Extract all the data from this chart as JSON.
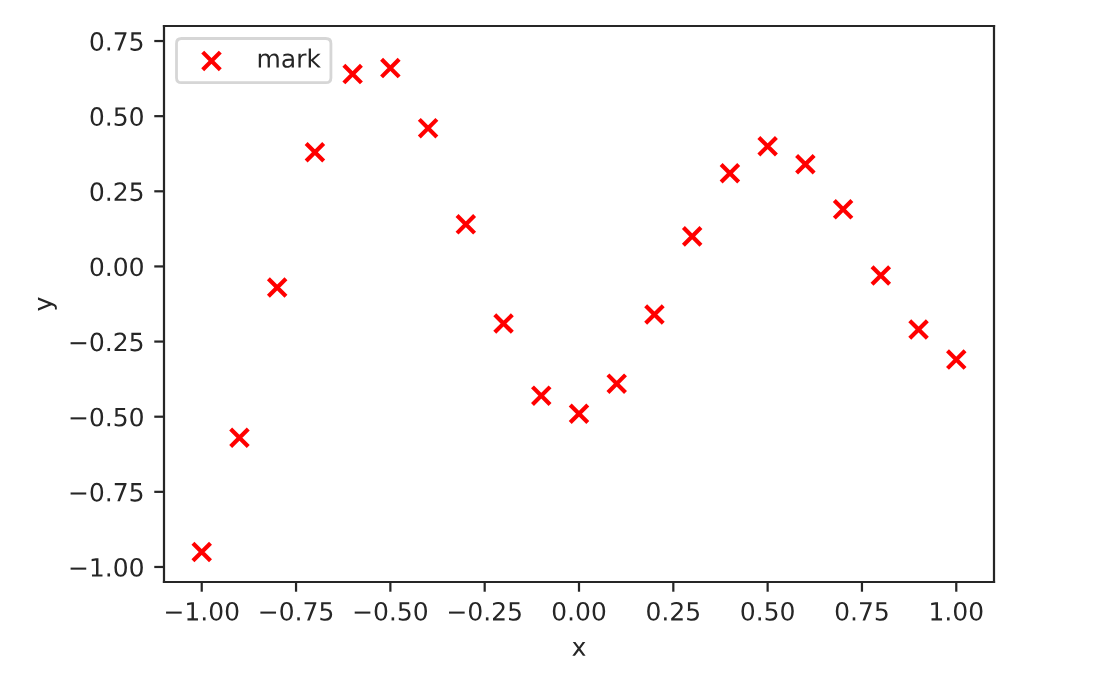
{
  "chart_data": {
    "type": "scatter",
    "xlabel": "x",
    "ylabel": "y",
    "x": [
      -1.0,
      -0.9,
      -0.8,
      -0.7,
      -0.6,
      -0.5,
      -0.4,
      -0.3,
      -0.2,
      -0.1,
      0.0,
      0.1,
      0.2,
      0.3,
      0.4,
      0.5,
      0.6,
      0.7,
      0.8,
      0.9,
      1.0
    ],
    "series": [
      {
        "name": "mark",
        "color": "#ff0000",
        "values": [
          -0.95,
          -0.57,
          -0.07,
          0.38,
          0.64,
          0.66,
          0.46,
          0.14,
          -0.19,
          -0.43,
          -0.49,
          -0.39,
          -0.16,
          0.1,
          0.31,
          0.4,
          0.34,
          0.19,
          -0.03,
          -0.21,
          -0.31
        ]
      }
    ],
    "marker": "cross",
    "legend": "top left",
    "grid": false,
    "xlim": [
      -1.1,
      1.1
    ],
    "ylim": [
      -1.05,
      0.8
    ],
    "xticks": [
      {
        "value": -1.0,
        "label": "−1.00"
      },
      {
        "value": -0.75,
        "label": "−0.75"
      },
      {
        "value": -0.5,
        "label": "−0.50"
      },
      {
        "value": -0.25,
        "label": "−0.25"
      },
      {
        "value": 0.0,
        "label": "0.00"
      },
      {
        "value": 0.25,
        "label": "0.25"
      },
      {
        "value": 0.5,
        "label": "0.50"
      },
      {
        "value": 0.75,
        "label": "0.75"
      },
      {
        "value": 1.0,
        "label": "1.00"
      }
    ],
    "yticks": [
      {
        "value": -1.0,
        "label": "−1.00"
      },
      {
        "value": -0.75,
        "label": "−0.75"
      },
      {
        "value": -0.5,
        "label": "−0.50"
      },
      {
        "value": -0.25,
        "label": "−0.25"
      },
      {
        "value": 0.0,
        "label": "0.00"
      },
      {
        "value": 0.25,
        "label": "0.25"
      },
      {
        "value": 0.5,
        "label": "0.50"
      },
      {
        "value": 0.75,
        "label": "0.75"
      }
    ]
  }
}
